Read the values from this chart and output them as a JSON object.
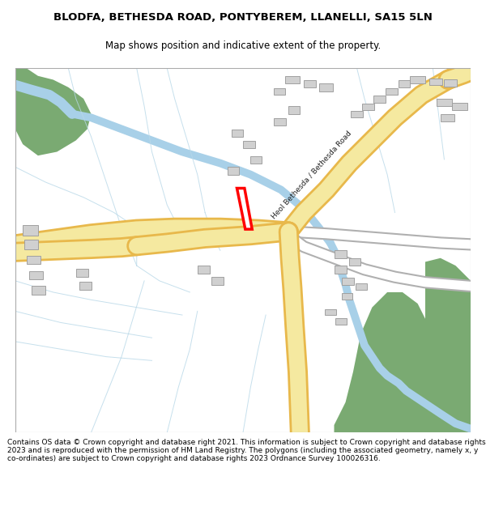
{
  "title": "BLODFA, BETHESDA ROAD, PONTYBEREM, LLANELLI, SA15 5LN",
  "subtitle": "Map shows position and indicative extent of the property.",
  "footer": "Contains OS data © Crown copyright and database right 2021. This information is subject to Crown copyright and database rights 2023 and is reproduced with the permission of HM Land Registry. The polygons (including the associated geometry, namely x, y co-ordinates) are subject to Crown copyright and database rights 2023 Ordnance Survey 100026316.",
  "road_yellow_fill": "#f5e9a0",
  "road_yellow_border": "#e8b84b",
  "road_minor_fill": "#ffffff",
  "road_minor_border": "#b0b0b0",
  "river_color": "#a8d0e8",
  "green_color": "#7aaa72",
  "field_line_color": "#b8d8e8",
  "building_fill": "#d0d0d0",
  "building_border": "#a0a0a0",
  "plot_color": "#ff0000",
  "title_fontsize": 9.5,
  "subtitle_fontsize": 8.5,
  "footer_fontsize": 6.5
}
